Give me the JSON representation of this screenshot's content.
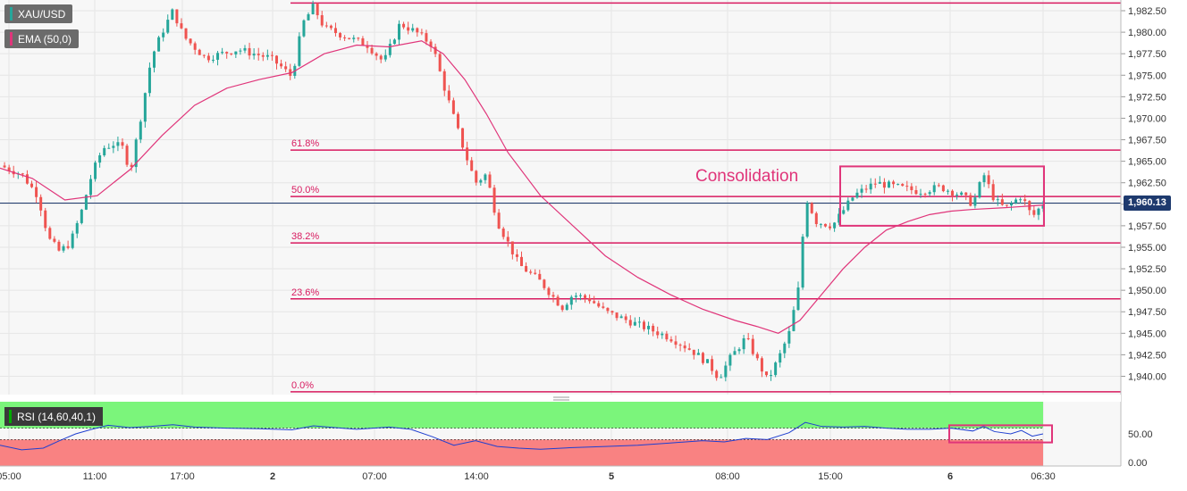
{
  "legend": {
    "symbol": "XAU/USD",
    "ema": "EMA (50,0)",
    "rsi": "RSI (14,60,40,1)"
  },
  "current_price": "1,960.13",
  "annotation": "Consolidation",
  "chart_data": [
    {
      "type": "candlestick",
      "title": "",
      "x_tick_labels": [
        "05:00",
        "11:00",
        "17:00",
        "2",
        "07:00",
        "14:00",
        "5",
        "08:00",
        "15:00",
        "6",
        "06:30"
      ],
      "y_tick_labels": [
        "1,982.50",
        "1,980.00",
        "1,977.50",
        "1,975.00",
        "1,972.50",
        "1,970.00",
        "1,967.50",
        "1,965.00",
        "1,962.50",
        "1,960.00",
        "1,957.50",
        "1,955.00",
        "1,952.50",
        "1,950.00",
        "1,947.50",
        "1,945.00",
        "1,942.50",
        "1,940.00"
      ],
      "ylim": [
        1938.0,
        1983.5
      ],
      "grid": true,
      "last_price": 1960.13,
      "fibonacci": [
        {
          "level": "61.8%",
          "price": 1966.3
        },
        {
          "level": "50.0%",
          "price": 1960.9
        },
        {
          "level": "38.2%",
          "price": 1955.5
        },
        {
          "level": "23.6%",
          "price": 1949.0
        },
        {
          "level": "0.0%",
          "price": 1938.2
        }
      ],
      "swing_high_line": 1983.4,
      "consolidation_box": {
        "price_high": 1964.4,
        "price_low": 1957.5
      },
      "price_path": [
        [
          0.0,
          1964.5
        ],
        [
          0.02,
          1963.5
        ],
        [
          0.035,
          1961.0
        ],
        [
          0.045,
          1956.0
        ],
        [
          0.055,
          1954.5
        ],
        [
          0.065,
          1955.5
        ],
        [
          0.075,
          1959.0
        ],
        [
          0.085,
          1963.5
        ],
        [
          0.095,
          1966.5
        ],
        [
          0.105,
          1967.0
        ],
        [
          0.115,
          1966.5
        ],
        [
          0.12,
          1963.5
        ],
        [
          0.13,
          1970.0
        ],
        [
          0.14,
          1977.0
        ],
        [
          0.15,
          1980.0
        ],
        [
          0.16,
          1982.5
        ],
        [
          0.17,
          1979.5
        ],
        [
          0.19,
          1977.0
        ],
        [
          0.22,
          1978.0
        ],
        [
          0.25,
          1977.0
        ],
        [
          0.26,
          1976.0
        ],
        [
          0.27,
          1974.8
        ],
        [
          0.28,
          1981.0
        ],
        [
          0.29,
          1983.0
        ],
        [
          0.3,
          1980.5
        ],
        [
          0.32,
          1979.5
        ],
        [
          0.34,
          1978.5
        ],
        [
          0.355,
          1976.5
        ],
        [
          0.37,
          1981.0
        ],
        [
          0.385,
          1980.0
        ],
        [
          0.4,
          1978.5
        ],
        [
          0.41,
          1974.0
        ],
        [
          0.42,
          1970.0
        ],
        [
          0.43,
          1966.0
        ],
        [
          0.44,
          1962.5
        ],
        [
          0.45,
          1963.5
        ],
        [
          0.46,
          1958.0
        ],
        [
          0.47,
          1955.5
        ],
        [
          0.48,
          1953.0
        ],
        [
          0.5,
          1951.0
        ],
        [
          0.52,
          1948.0
        ],
        [
          0.53,
          1949.5
        ],
        [
          0.545,
          1949.0
        ],
        [
          0.56,
          1947.5
        ],
        [
          0.58,
          1946.5
        ],
        [
          0.6,
          1945.5
        ],
        [
          0.62,
          1944.5
        ],
        [
          0.64,
          1943.0
        ],
        [
          0.655,
          1941.5
        ],
        [
          0.665,
          1939.8
        ],
        [
          0.675,
          1942.0
        ],
        [
          0.69,
          1944.5
        ],
        [
          0.7,
          1942.0
        ],
        [
          0.71,
          1939.5
        ],
        [
          0.72,
          1942.0
        ],
        [
          0.73,
          1945.0
        ],
        [
          0.74,
          1951.0
        ],
        [
          0.745,
          1961.0
        ],
        [
          0.755,
          1958.0
        ],
        [
          0.77,
          1957.5
        ],
        [
          0.79,
          1961.0
        ],
        [
          0.81,
          1962.5
        ],
        [
          0.83,
          1962.0
        ],
        [
          0.85,
          1961.5
        ],
        [
          0.87,
          1962.0
        ],
        [
          0.89,
          1961.0
        ],
        [
          0.9,
          1960.0
        ],
        [
          0.91,
          1963.5
        ],
        [
          0.92,
          1960.5
        ],
        [
          0.93,
          1959.5
        ],
        [
          0.945,
          1961.0
        ],
        [
          0.955,
          1958.5
        ],
        [
          0.965,
          1960.1
        ]
      ],
      "ema_path": [
        [
          0.0,
          1964.2
        ],
        [
          0.03,
          1963.0
        ],
        [
          0.06,
          1960.5
        ],
        [
          0.09,
          1961.0
        ],
        [
          0.12,
          1964.0
        ],
        [
          0.15,
          1968.0
        ],
        [
          0.18,
          1971.5
        ],
        [
          0.21,
          1973.5
        ],
        [
          0.24,
          1974.5
        ],
        [
          0.27,
          1975.3
        ],
        [
          0.3,
          1977.5
        ],
        [
          0.33,
          1978.5
        ],
        [
          0.36,
          1978.3
        ],
        [
          0.39,
          1979.0
        ],
        [
          0.41,
          1977.5
        ],
        [
          0.43,
          1974.5
        ],
        [
          0.45,
          1970.5
        ],
        [
          0.47,
          1966.0
        ],
        [
          0.5,
          1961.0
        ],
        [
          0.53,
          1957.5
        ],
        [
          0.56,
          1954.0
        ],
        [
          0.59,
          1951.5
        ],
        [
          0.62,
          1949.5
        ],
        [
          0.65,
          1947.8
        ],
        [
          0.68,
          1946.5
        ],
        [
          0.7,
          1945.8
        ],
        [
          0.72,
          1945.0
        ],
        [
          0.74,
          1946.5
        ],
        [
          0.76,
          1949.5
        ],
        [
          0.78,
          1952.5
        ],
        [
          0.8,
          1955.0
        ],
        [
          0.82,
          1957.0
        ],
        [
          0.84,
          1958.0
        ],
        [
          0.86,
          1958.8
        ],
        [
          0.88,
          1959.2
        ],
        [
          0.9,
          1959.4
        ],
        [
          0.93,
          1959.6
        ],
        [
          0.965,
          1959.9
        ]
      ]
    },
    {
      "type": "line",
      "title": "",
      "name": "RSI",
      "y_tick_labels": [
        "50.00",
        "0.00"
      ],
      "ylim": [
        0,
        100
      ],
      "bands": [
        60,
        40
      ],
      "highlight_box": {
        "value_high": 65,
        "value_low": 35
      },
      "values": [
        [
          0.0,
          30
        ],
        [
          0.02,
          22
        ],
        [
          0.04,
          25
        ],
        [
          0.055,
          38
        ],
        [
          0.07,
          50
        ],
        [
          0.085,
          58
        ],
        [
          0.1,
          65
        ],
        [
          0.12,
          61
        ],
        [
          0.14,
          63
        ],
        [
          0.16,
          66
        ],
        [
          0.18,
          62
        ],
        [
          0.21,
          60
        ],
        [
          0.24,
          59
        ],
        [
          0.27,
          57
        ],
        [
          0.29,
          64
        ],
        [
          0.31,
          61
        ],
        [
          0.33,
          58
        ],
        [
          0.36,
          62
        ],
        [
          0.38,
          58
        ],
        [
          0.4,
          45
        ],
        [
          0.42,
          30
        ],
        [
          0.44,
          38
        ],
        [
          0.46,
          28
        ],
        [
          0.48,
          25
        ],
        [
          0.5,
          23
        ],
        [
          0.53,
          26
        ],
        [
          0.56,
          28
        ],
        [
          0.59,
          30
        ],
        [
          0.62,
          34
        ],
        [
          0.65,
          38
        ],
        [
          0.67,
          36
        ],
        [
          0.69,
          42
        ],
        [
          0.71,
          40
        ],
        [
          0.73,
          52
        ],
        [
          0.745,
          70
        ],
        [
          0.76,
          63
        ],
        [
          0.78,
          62
        ],
        [
          0.8,
          63
        ],
        [
          0.82,
          60
        ],
        [
          0.84,
          58
        ],
        [
          0.86,
          58
        ],
        [
          0.88,
          60
        ],
        [
          0.9,
          55
        ],
        [
          0.91,
          63
        ],
        [
          0.92,
          54
        ],
        [
          0.935,
          50
        ],
        [
          0.945,
          56
        ],
        [
          0.955,
          46
        ],
        [
          0.965,
          50
        ]
      ]
    }
  ],
  "colors": {
    "up": "#26a69a",
    "down": "#ef5350",
    "ema": "#e0357a",
    "fib": "#d81b60",
    "box": "#e0357a",
    "rsi_line": "#1f3fd0",
    "rsi_upper_band": "#7bf57b",
    "rsi_lower_band": "#f98282",
    "price_line": "#1e3a6e",
    "grid": "#e6e6e6"
  }
}
